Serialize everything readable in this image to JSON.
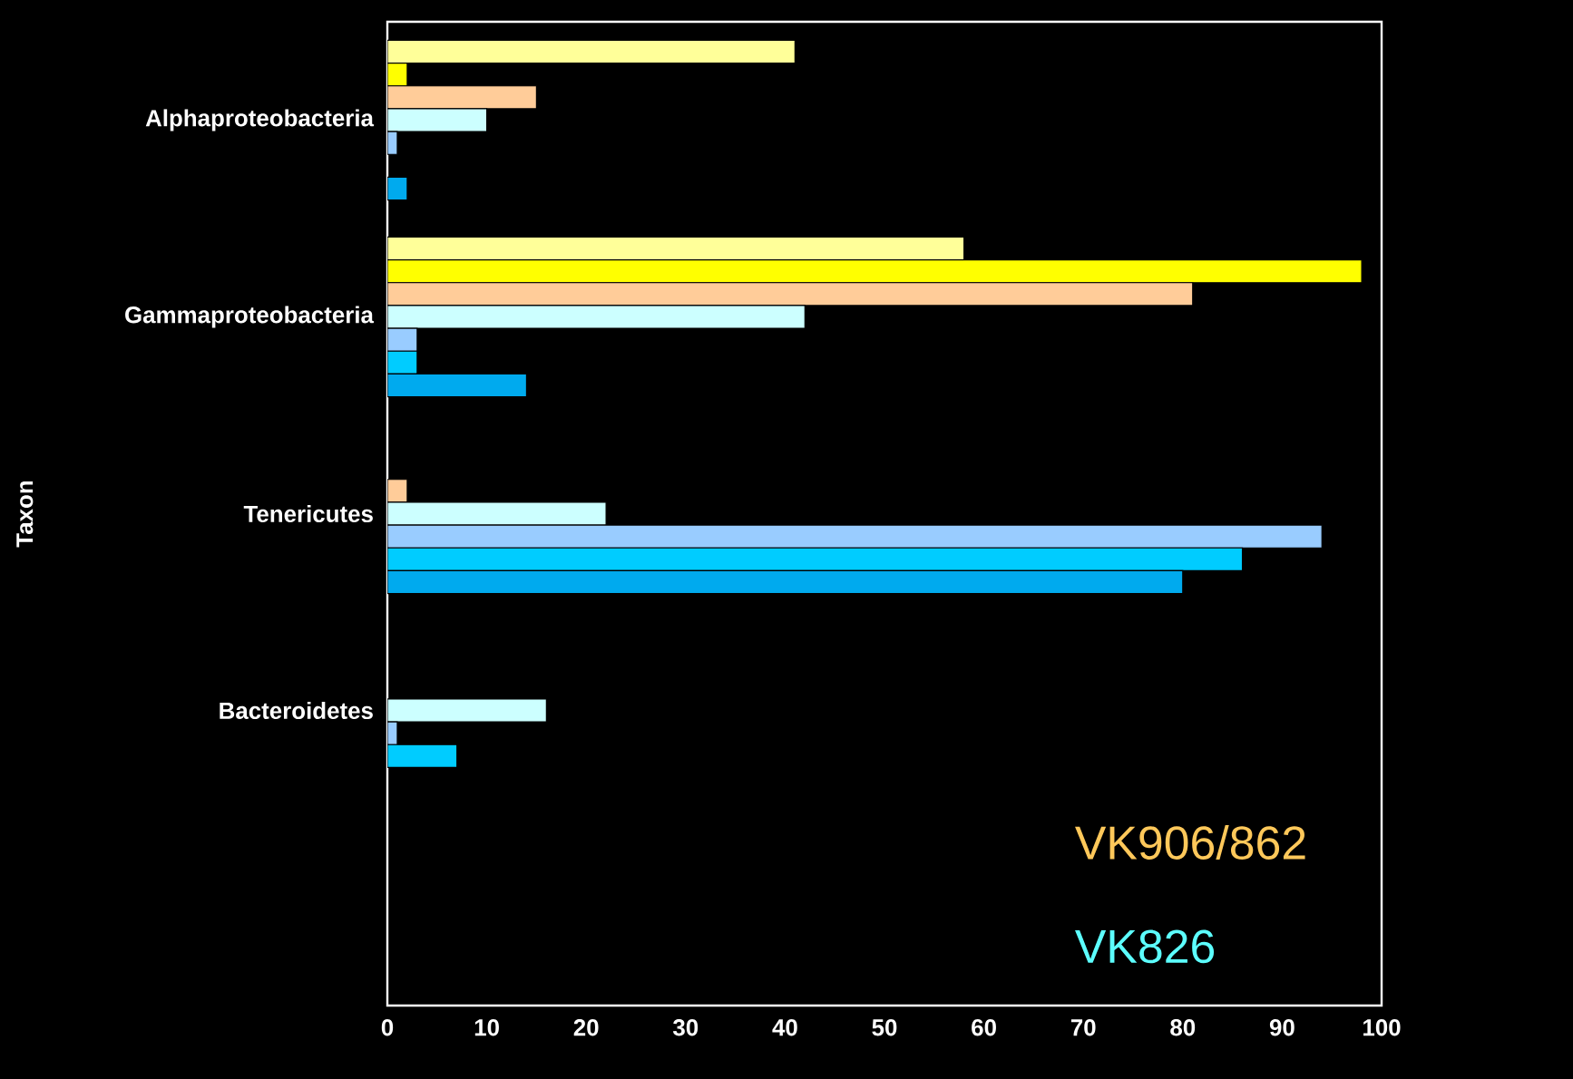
{
  "chart_data": {
    "type": "bar",
    "orientation": "horizontal",
    "ylabel": "Taxon",
    "categories": [
      "Alphaproteobacteria",
      "Gammaproteobacteria",
      "Tenericutes",
      "Bacteroidetes",
      null
    ],
    "series": [
      {
        "color": "#ffff99",
        "values": [
          41,
          58,
          null,
          null,
          null
        ]
      },
      {
        "color": "#ffff00",
        "values": [
          2,
          98,
          null,
          null,
          null
        ]
      },
      {
        "color": "#ffcc99",
        "values": [
          15,
          81,
          2,
          null,
          null
        ]
      },
      {
        "color": "#ccffff",
        "values": [
          10,
          42,
          22,
          16,
          null
        ]
      },
      {
        "color": "#99ccff",
        "values": [
          1,
          3,
          94,
          1,
          null
        ]
      },
      {
        "color": "#00ccff",
        "values": [
          null,
          3,
          86,
          7,
          null
        ]
      },
      {
        "color": "#00aaee",
        "values": [
          2,
          14,
          80,
          null,
          null
        ]
      }
    ],
    "xlim": [
      0,
      100
    ],
    "xticks": [
      0,
      10,
      20,
      30,
      40,
      50,
      60,
      70,
      80,
      90,
      100
    ],
    "annotations": [
      "VK906/862",
      "VK826"
    ],
    "grid": false
  }
}
